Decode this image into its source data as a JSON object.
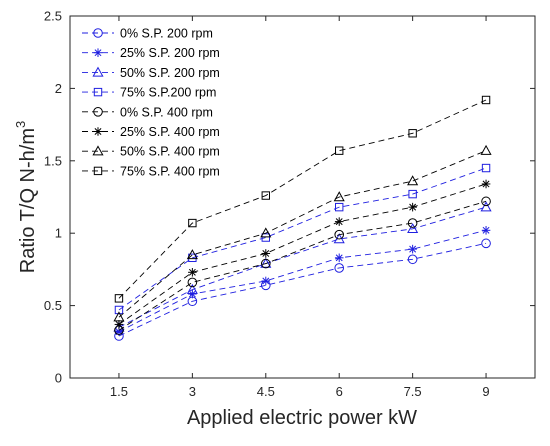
{
  "chart_data": {
    "type": "line",
    "title": "",
    "xlabel": "Applied electric power  kW",
    "ylabel_main": "Ratio T/Q N-h/m",
    "ylabel_sup": "3",
    "x": [
      1.5,
      3,
      4.5,
      6,
      7.5,
      9
    ],
    "x_tick_labels": [
      "1.5",
      "3",
      "4.5",
      "6",
      "7.5",
      "9"
    ],
    "y_ticks": [
      0,
      0.5,
      1,
      1.5,
      2,
      2.5
    ],
    "y_tick_labels": [
      "0",
      "0.5",
      "1",
      "1.5",
      "2",
      "2.5"
    ],
    "xlim": [
      0.5,
      10
    ],
    "ylim": [
      0,
      2.5
    ],
    "grid": false,
    "legend_position": "top-left",
    "series": [
      {
        "name": "0% S.P. 200 rpm",
        "color": "#1f1fe0",
        "marker": "circle",
        "values": [
          0.29,
          0.53,
          0.64,
          0.76,
          0.82,
          0.93
        ]
      },
      {
        "name": "25% S.P. 200 rpm",
        "color": "#1f1fe0",
        "marker": "star",
        "values": [
          0.32,
          0.58,
          0.67,
          0.83,
          0.89,
          1.02
        ]
      },
      {
        "name": "50% S.P. 200 rpm",
        "color": "#1f1fe0",
        "marker": "triangle",
        "values": [
          0.35,
          0.61,
          0.79,
          0.96,
          1.03,
          1.18
        ]
      },
      {
        "name": "75% S.P.200 rpm",
        "color": "#1f1fe0",
        "marker": "square",
        "values": [
          0.47,
          0.83,
          0.97,
          1.18,
          1.27,
          1.45
        ]
      },
      {
        "name": "0% S.P. 400 rpm",
        "color": "#000000",
        "marker": "circle",
        "values": [
          0.33,
          0.66,
          0.79,
          0.99,
          1.07,
          1.22
        ]
      },
      {
        "name": "25% S.P. 400 rpm",
        "color": "#000000",
        "marker": "star",
        "values": [
          0.37,
          0.73,
          0.86,
          1.08,
          1.18,
          1.34
        ]
      },
      {
        "name": "50% S.P. 400 rpm",
        "color": "#000000",
        "marker": "triangle",
        "values": [
          0.42,
          0.85,
          1.0,
          1.25,
          1.36,
          1.57
        ]
      },
      {
        "name": "75% S.P. 400 rpm",
        "color": "#000000",
        "marker": "square",
        "values": [
          0.55,
          1.07,
          1.26,
          1.57,
          1.69,
          1.92
        ]
      }
    ]
  }
}
